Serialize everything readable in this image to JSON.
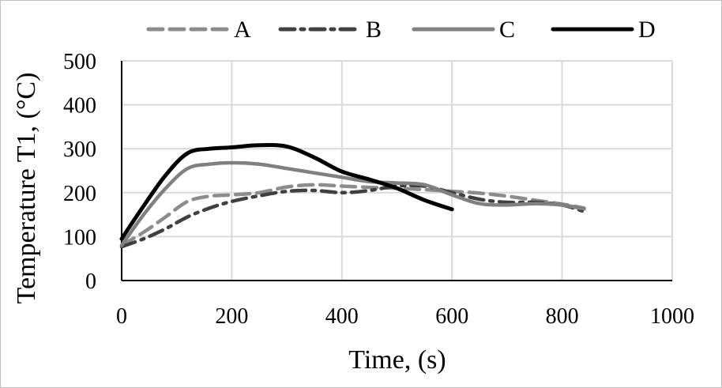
{
  "chart_data": {
    "type": "line",
    "title": "",
    "xlabel": "Time, (s)",
    "ylabel": "Temperature T1, (°C)",
    "xlim": [
      0,
      1000
    ],
    "ylim": [
      0,
      500
    ],
    "xticks": [
      "0",
      "200",
      "400",
      "600",
      "800",
      "1000"
    ],
    "yticks": [
      "0",
      "100",
      "200",
      "300",
      "400",
      "500"
    ],
    "grid": true,
    "legend_position": "top",
    "series": [
      {
        "name": "A",
        "style": "dashed",
        "color": "#8c8c8c",
        "x": [
          0,
          40,
          80,
          120,
          160,
          200,
          250,
          300,
          350,
          400,
          450,
          500,
          550,
          600,
          650,
          700,
          750,
          800,
          840
        ],
        "y": [
          80,
          110,
          145,
          180,
          192,
          195,
          200,
          213,
          218,
          215,
          212,
          210,
          207,
          203,
          199,
          192,
          183,
          174,
          165
        ]
      },
      {
        "name": "B",
        "style": "dash-dot",
        "color": "#404040",
        "x": [
          0,
          40,
          80,
          120,
          160,
          200,
          250,
          300,
          350,
          400,
          450,
          500,
          550,
          600,
          650,
          700,
          750,
          800,
          840
        ],
        "y": [
          77,
          95,
          118,
          145,
          165,
          180,
          193,
          203,
          205,
          200,
          205,
          215,
          215,
          200,
          185,
          178,
          178,
          172,
          157
        ]
      },
      {
        "name": "C",
        "style": "solid",
        "color": "#808080",
        "x": [
          0,
          40,
          80,
          120,
          160,
          200,
          250,
          300,
          350,
          400,
          450,
          500,
          550,
          600,
          650,
          700,
          750,
          800,
          840
        ],
        "y": [
          80,
          150,
          210,
          255,
          265,
          268,
          265,
          255,
          245,
          235,
          225,
          222,
          218,
          195,
          175,
          172,
          175,
          172,
          163
        ]
      },
      {
        "name": "D",
        "style": "solid",
        "color": "#000000",
        "x": [
          0,
          40,
          80,
          120,
          160,
          200,
          250,
          300,
          350,
          400,
          450,
          500,
          550,
          600
        ],
        "y": [
          95,
          170,
          240,
          290,
          300,
          303,
          308,
          305,
          280,
          248,
          230,
          210,
          183,
          162
        ]
      }
    ]
  }
}
